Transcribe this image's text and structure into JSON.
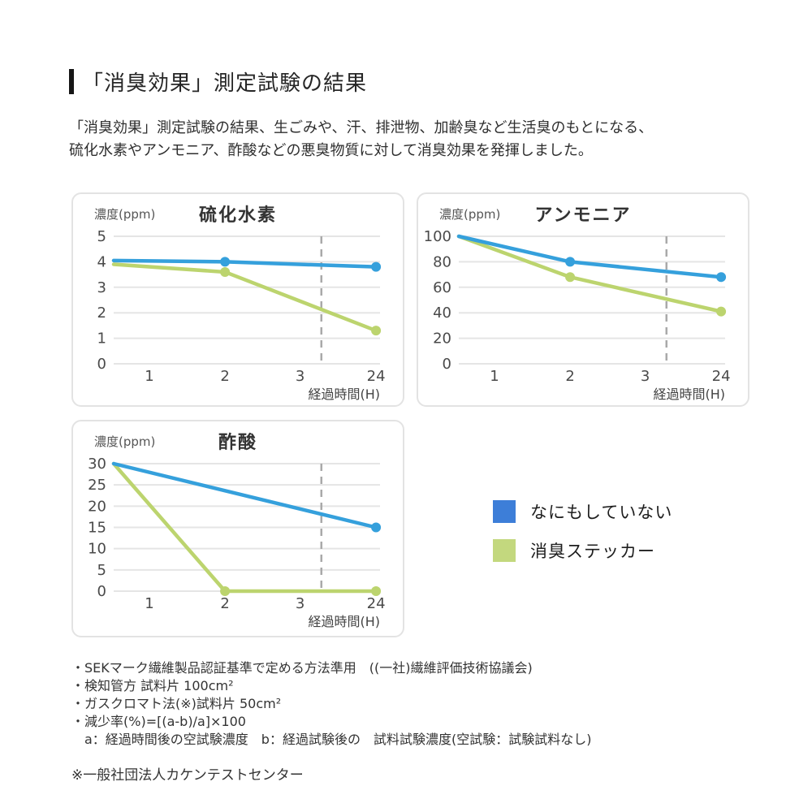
{
  "page": {
    "title": "「消臭効果」測定試験の結果",
    "description_line1": "「消臭効果」測定試験の結果、生ごみや、汗、排泄物、加齢臭など生活臭のもとになる、",
    "description_line2": "硫化水素やアンモニア、酢酸などの悪臭物質に対して消臭効果を発揮しました。"
  },
  "legend": {
    "items": [
      {
        "label": "なにもしていない",
        "color": "#3d7ed8"
      },
      {
        "label": "消臭ステッカー",
        "color": "#c3d87e"
      }
    ]
  },
  "chart_data": [
    {
      "type": "line",
      "title": "硫化水素",
      "unit_label": "濃度(ppm)",
      "xlabel": "経過時間(H)",
      "categories": [
        "1",
        "2",
        "3",
        "24"
      ],
      "yticks": [
        0,
        1,
        2,
        3,
        4,
        5
      ],
      "ylim": [
        0,
        5
      ],
      "grid": true,
      "dashed_guide_between": [
        "3",
        "24"
      ],
      "series": [
        {
          "name": "なにもしていない",
          "color": "#35a0dc",
          "points": [
            {
              "t": 0,
              "v": 4.05,
              "dot": false
            },
            {
              "t": 2,
              "v": 4.0,
              "dot": true
            },
            {
              "t": 24,
              "v": 3.8,
              "dot": true
            }
          ]
        },
        {
          "name": "消臭ステッカー",
          "color": "#bcd46e",
          "points": [
            {
              "t": 0,
              "v": 3.9,
              "dot": false
            },
            {
              "t": 2,
              "v": 3.6,
              "dot": true
            },
            {
              "t": 24,
              "v": 1.3,
              "dot": true
            }
          ]
        }
      ]
    },
    {
      "type": "line",
      "title": "アンモニア",
      "unit_label": "濃度(ppm)",
      "xlabel": "経過時間(H)",
      "categories": [
        "1",
        "2",
        "3",
        "24"
      ],
      "yticks": [
        0,
        20,
        40,
        60,
        80,
        100
      ],
      "ylim": [
        0,
        100
      ],
      "grid": true,
      "dashed_guide_between": [
        "3",
        "24"
      ],
      "series": [
        {
          "name": "なにもしていない",
          "color": "#35a0dc",
          "points": [
            {
              "t": 0,
              "v": 100,
              "dot": false
            },
            {
              "t": 2,
              "v": 80,
              "dot": true
            },
            {
              "t": 24,
              "v": 68,
              "dot": true
            }
          ]
        },
        {
          "name": "消臭ステッカー",
          "color": "#bcd46e",
          "points": [
            {
              "t": 0,
              "v": 100,
              "dot": false
            },
            {
              "t": 2,
              "v": 68,
              "dot": true
            },
            {
              "t": 24,
              "v": 41,
              "dot": true
            }
          ]
        }
      ]
    },
    {
      "type": "line",
      "title": "酢酸",
      "unit_label": "濃度(ppm)",
      "xlabel": "経過時間(H)",
      "categories": [
        "1",
        "2",
        "3",
        "24"
      ],
      "yticks": [
        0,
        5,
        10,
        15,
        20,
        25,
        30
      ],
      "ylim": [
        0,
        30
      ],
      "grid": true,
      "dashed_guide_between": [
        "3",
        "24"
      ],
      "series": [
        {
          "name": "なにもしていない",
          "color": "#35a0dc",
          "points": [
            {
              "t": 0,
              "v": 30,
              "dot": false
            },
            {
              "t": 24,
              "v": 15,
              "dot": true
            }
          ]
        },
        {
          "name": "消臭ステッカー",
          "color": "#bcd46e",
          "points": [
            {
              "t": 0,
              "v": 30,
              "dot": false
            },
            {
              "t": 2,
              "v": 0,
              "dot": true
            },
            {
              "t": 24,
              "v": 0,
              "dot": true
            }
          ]
        }
      ]
    }
  ],
  "footnotes": [
    "・SEKマーク繊維製品認証基準で定める方法準用　((一社)繊維評価技術協議会)",
    "・検知管方 試料片 100cm²",
    "・ガスクロマト法(※)試料片 50cm²",
    "・減少率(%)=[(a-b)/a]×100",
    "　a：経過時間後の空試験濃度　b：経過試験後の　試料試験濃度(空試験：試験試料なし)"
  ],
  "agency_note": "※一般社団法人カケンテストセンター"
}
